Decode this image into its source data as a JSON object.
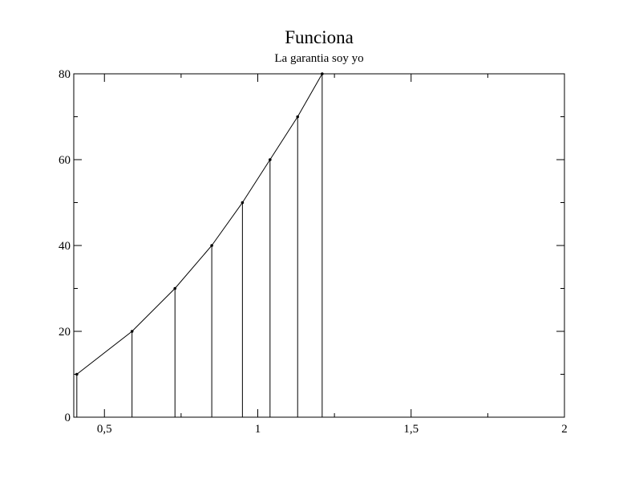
{
  "chart_data": {
    "type": "line",
    "title": "Funciona",
    "subtitle": "La garantia soy yo",
    "xlabel": "",
    "ylabel": "",
    "xlim": [
      0.4,
      2.0
    ],
    "ylim": [
      0,
      80
    ],
    "x_ticks": [
      0.5,
      1,
      1.5,
      2
    ],
    "x_tick_labels": [
      "0,5",
      "1",
      "1,5",
      "2"
    ],
    "y_ticks": [
      0,
      20,
      40,
      60,
      80
    ],
    "y_tick_labels": [
      "0",
      "20",
      "40",
      "60",
      "80"
    ],
    "grid": false,
    "drop_lines": true,
    "series": [
      {
        "x": [
          0.41,
          0.59,
          0.73,
          0.85,
          0.95,
          1.04,
          1.13,
          1.21
        ],
        "y": [
          10,
          20,
          30,
          40,
          50,
          60,
          70,
          80
        ]
      }
    ]
  }
}
